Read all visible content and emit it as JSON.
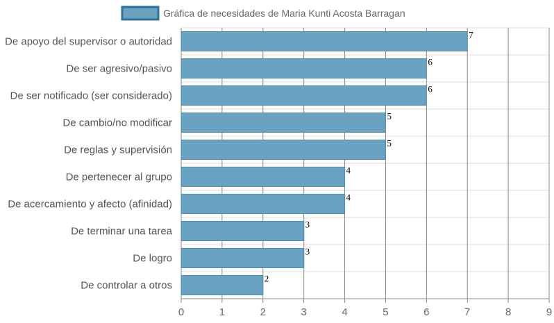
{
  "chart_data": {
    "type": "bar",
    "orientation": "horizontal",
    "categories": [
      "De apoyo del supervisor o autoridad",
      "De ser agresivo/pasivo",
      "De ser notificado (ser considerado)",
      "De cambio/no modificar",
      "De reglas y supervisión",
      "De pertenecer al grupo",
      "De acercamiento y afecto (afinidad)",
      "De terminar una tarea",
      "De logro",
      "De controlar a otros"
    ],
    "series": [
      {
        "name": "Gráfica de necesidades de Maria Kunti Acosta Barragan",
        "values": [
          7,
          6,
          6,
          5,
          5,
          4,
          4,
          3,
          3,
          2
        ]
      }
    ],
    "x_ticks": [
      0,
      1,
      2,
      3,
      4,
      5,
      6,
      7,
      8,
      9
    ],
    "xlim": [
      0,
      9
    ],
    "grid": true,
    "legend_position": "top",
    "data_labels": true,
    "colors": {
      "bar_fill": "#6aa3c2",
      "bar_stroke": "#4f8cae",
      "legend_fill": "#6aa3c2",
      "legend_stroke": "#2f7199",
      "grid_major": "#888888",
      "grid_minor": "#dddddd"
    }
  }
}
